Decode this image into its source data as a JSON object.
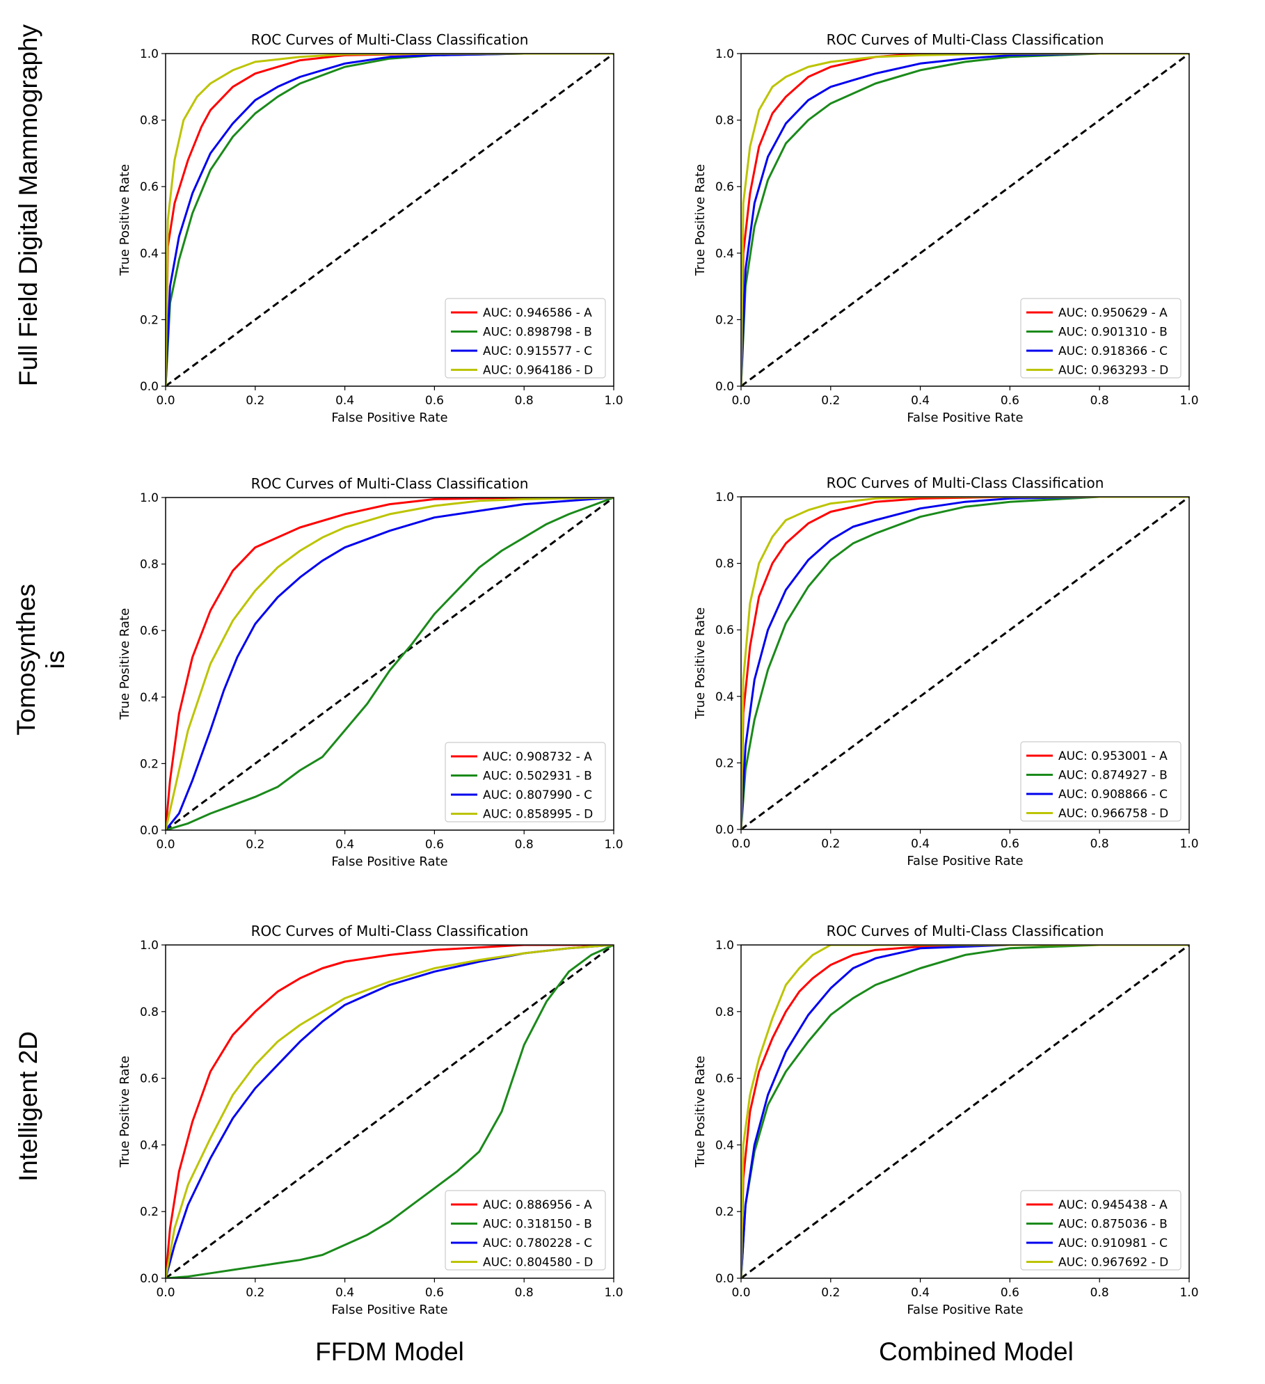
{
  "row_labels": [
    "Full Field Digital Mammography",
    "Tomosynthes\nis",
    "Intelligent 2D"
  ],
  "col_labels": [
    "FFDM Model",
    "Combined Model"
  ],
  "colors": {
    "A": "#ff0000",
    "B": "#1a8a1a",
    "C": "#0000ee",
    "D": "#bcc400",
    "diagonal": "#000000"
  },
  "chart_data": [
    {
      "type": "line",
      "title": "ROC Curves of Multi-Class Classification",
      "xlabel": "False Positive Rate",
      "ylabel": "True Positive Rate",
      "xlim": [
        0,
        1
      ],
      "ylim": [
        0,
        1
      ],
      "xticks": [
        "0.0",
        "0.2",
        "0.4",
        "0.6",
        "0.8",
        "1.0"
      ],
      "yticks": [
        "0.0",
        "0.2",
        "0.4",
        "0.6",
        "0.8",
        "1.0"
      ],
      "legend": "lower-right",
      "series": [
        {
          "name": "AUC: 0.946586 - A",
          "color": "#ff0000",
          "x": [
            0,
            0.005,
            0.02,
            0.05,
            0.08,
            0.1,
            0.15,
            0.2,
            0.3,
            0.4,
            0.6,
            0.8,
            1.0
          ],
          "y": [
            0,
            0.42,
            0.55,
            0.68,
            0.78,
            0.83,
            0.9,
            0.94,
            0.98,
            0.995,
            1.0,
            1.0,
            1.0
          ]
        },
        {
          "name": "AUC: 0.898798 - B",
          "color": "#1a8a1a",
          "x": [
            0,
            0.01,
            0.03,
            0.06,
            0.1,
            0.15,
            0.2,
            0.25,
            0.3,
            0.4,
            0.5,
            0.6,
            0.8,
            1.0
          ],
          "y": [
            0,
            0.25,
            0.38,
            0.52,
            0.65,
            0.75,
            0.82,
            0.87,
            0.91,
            0.96,
            0.985,
            0.995,
            1.0,
            1.0
          ]
        },
        {
          "name": "AUC: 0.915577 - C",
          "color": "#0000ee",
          "x": [
            0,
            0.01,
            0.03,
            0.06,
            0.1,
            0.15,
            0.2,
            0.25,
            0.3,
            0.4,
            0.5,
            0.6,
            0.8,
            1.0
          ],
          "y": [
            0,
            0.3,
            0.45,
            0.58,
            0.7,
            0.79,
            0.86,
            0.9,
            0.93,
            0.97,
            0.99,
            0.995,
            1.0,
            1.0
          ]
        },
        {
          "name": "AUC: 0.964186 - D",
          "color": "#bcc400",
          "x": [
            0,
            0.005,
            0.02,
            0.04,
            0.07,
            0.1,
            0.15,
            0.2,
            0.3,
            0.4,
            0.6,
            1.0
          ],
          "y": [
            0,
            0.5,
            0.68,
            0.8,
            0.87,
            0.91,
            0.95,
            0.975,
            0.99,
            0.998,
            1.0,
            1.0
          ]
        }
      ]
    },
    {
      "type": "line",
      "title": "ROC Curves of Multi-Class Classification",
      "xlabel": "False Positive Rate",
      "ylabel": "True Positive Rate",
      "xlim": [
        0,
        1
      ],
      "ylim": [
        0,
        1
      ],
      "xticks": [
        "0.0",
        "0.2",
        "0.4",
        "0.6",
        "0.8",
        "1.0"
      ],
      "yticks": [
        "0.0",
        "0.2",
        "0.4",
        "0.6",
        "0.8",
        "1.0"
      ],
      "legend": "lower-right",
      "series": [
        {
          "name": "AUC: 0.950629 - A",
          "color": "#ff0000",
          "x": [
            0,
            0.005,
            0.02,
            0.04,
            0.07,
            0.1,
            0.15,
            0.2,
            0.3,
            0.4,
            0.6,
            1.0
          ],
          "y": [
            0,
            0.4,
            0.58,
            0.72,
            0.82,
            0.87,
            0.93,
            0.96,
            0.99,
            1.0,
            1.0,
            1.0
          ]
        },
        {
          "name": "AUC: 0.901310 - B",
          "color": "#1a8a1a",
          "x": [
            0,
            0.01,
            0.03,
            0.06,
            0.1,
            0.15,
            0.2,
            0.25,
            0.3,
            0.4,
            0.5,
            0.6,
            0.8,
            1.0
          ],
          "y": [
            0,
            0.3,
            0.48,
            0.62,
            0.73,
            0.8,
            0.85,
            0.88,
            0.91,
            0.95,
            0.975,
            0.99,
            1.0,
            1.0
          ]
        },
        {
          "name": "AUC: 0.918366 - C",
          "color": "#0000ee",
          "x": [
            0,
            0.01,
            0.03,
            0.06,
            0.1,
            0.15,
            0.2,
            0.25,
            0.3,
            0.4,
            0.5,
            0.6,
            0.8,
            1.0
          ],
          "y": [
            0,
            0.35,
            0.55,
            0.69,
            0.79,
            0.86,
            0.9,
            0.92,
            0.94,
            0.97,
            0.985,
            0.995,
            1.0,
            1.0
          ]
        },
        {
          "name": "AUC: 0.963293 - D",
          "color": "#bcc400",
          "x": [
            0,
            0.005,
            0.02,
            0.04,
            0.07,
            0.1,
            0.15,
            0.2,
            0.3,
            0.4,
            0.6,
            1.0
          ],
          "y": [
            0,
            0.55,
            0.72,
            0.83,
            0.9,
            0.93,
            0.96,
            0.975,
            0.99,
            0.995,
            1.0,
            1.0
          ]
        }
      ]
    },
    {
      "type": "line",
      "title": "ROC Curves of Multi-Class Classification",
      "xlabel": "False Positive Rate",
      "ylabel": "True Positive Rate",
      "xlim": [
        0,
        1
      ],
      "ylim": [
        0,
        1
      ],
      "xticks": [
        "0.0",
        "0.2",
        "0.4",
        "0.6",
        "0.8",
        "1.0"
      ],
      "yticks": [
        "0.0",
        "0.2",
        "0.4",
        "0.6",
        "0.8",
        "1.0"
      ],
      "legend": "lower-right",
      "series": [
        {
          "name": "AUC: 0.908732 - A",
          "color": "#ff0000",
          "x": [
            0,
            0.01,
            0.03,
            0.06,
            0.1,
            0.15,
            0.2,
            0.25,
            0.3,
            0.4,
            0.5,
            0.6,
            0.8,
            1.0
          ],
          "y": [
            0,
            0.15,
            0.35,
            0.52,
            0.66,
            0.78,
            0.85,
            0.88,
            0.91,
            0.95,
            0.98,
            0.995,
            1.0,
            1.0
          ]
        },
        {
          "name": "AUC: 0.502931 - B",
          "color": "#1a8a1a",
          "x": [
            0,
            0.05,
            0.1,
            0.15,
            0.2,
            0.25,
            0.3,
            0.35,
            0.4,
            0.45,
            0.5,
            0.55,
            0.6,
            0.65,
            0.7,
            0.75,
            0.8,
            0.85,
            0.9,
            0.95,
            1.0
          ],
          "y": [
            0,
            0.02,
            0.05,
            0.075,
            0.1,
            0.13,
            0.18,
            0.22,
            0.3,
            0.38,
            0.48,
            0.56,
            0.65,
            0.72,
            0.79,
            0.84,
            0.88,
            0.92,
            0.95,
            0.975,
            1.0
          ]
        },
        {
          "name": "AUC: 0.807990 - C",
          "color": "#0000ee",
          "x": [
            0,
            0.03,
            0.06,
            0.1,
            0.13,
            0.16,
            0.2,
            0.25,
            0.3,
            0.35,
            0.4,
            0.5,
            0.6,
            0.7,
            0.8,
            0.9,
            1.0
          ],
          "y": [
            0,
            0.05,
            0.15,
            0.3,
            0.42,
            0.52,
            0.62,
            0.7,
            0.76,
            0.81,
            0.85,
            0.9,
            0.94,
            0.96,
            0.98,
            0.99,
            1.0
          ]
        },
        {
          "name": "AUC: 0.858995 - D",
          "color": "#bcc400",
          "x": [
            0,
            0.02,
            0.05,
            0.1,
            0.15,
            0.2,
            0.25,
            0.3,
            0.35,
            0.4,
            0.5,
            0.6,
            0.7,
            0.8,
            1.0
          ],
          "y": [
            0,
            0.12,
            0.3,
            0.5,
            0.63,
            0.72,
            0.79,
            0.84,
            0.88,
            0.91,
            0.95,
            0.975,
            0.99,
            0.995,
            1.0
          ]
        }
      ]
    },
    {
      "type": "line",
      "title": "ROC Curves of Multi-Class Classification",
      "xlabel": "False Positive Rate",
      "ylabel": "True Positive Rate",
      "xlim": [
        0,
        1
      ],
      "ylim": [
        0,
        1
      ],
      "xticks": [
        "0.0",
        "0.2",
        "0.4",
        "0.6",
        "0.8",
        "1.0"
      ],
      "yticks": [
        "0.0",
        "0.2",
        "0.4",
        "0.6",
        "0.8",
        "1.0"
      ],
      "legend": "lower-right",
      "series": [
        {
          "name": "AUC: 0.953001 - A",
          "color": "#ff0000",
          "x": [
            0,
            0.005,
            0.02,
            0.04,
            0.07,
            0.1,
            0.15,
            0.2,
            0.3,
            0.4,
            0.6,
            1.0
          ],
          "y": [
            0,
            0.35,
            0.55,
            0.7,
            0.8,
            0.86,
            0.92,
            0.955,
            0.985,
            0.995,
            1.0,
            1.0
          ]
        },
        {
          "name": "AUC: 0.874927 - B",
          "color": "#1a8a1a",
          "x": [
            0,
            0.01,
            0.03,
            0.06,
            0.1,
            0.15,
            0.2,
            0.25,
            0.3,
            0.4,
            0.5,
            0.6,
            0.8,
            1.0
          ],
          "y": [
            0,
            0.18,
            0.33,
            0.48,
            0.62,
            0.73,
            0.81,
            0.86,
            0.89,
            0.94,
            0.97,
            0.985,
            1.0,
            1.0
          ]
        },
        {
          "name": "AUC: 0.908866 - C",
          "color": "#0000ee",
          "x": [
            0,
            0.01,
            0.03,
            0.06,
            0.1,
            0.15,
            0.2,
            0.25,
            0.3,
            0.4,
            0.5,
            0.6,
            0.8,
            1.0
          ],
          "y": [
            0,
            0.25,
            0.45,
            0.6,
            0.72,
            0.81,
            0.87,
            0.91,
            0.93,
            0.965,
            0.985,
            0.995,
            1.0,
            1.0
          ]
        },
        {
          "name": "AUC: 0.966758 - D",
          "color": "#bcc400",
          "x": [
            0,
            0.005,
            0.02,
            0.04,
            0.07,
            0.1,
            0.15,
            0.2,
            0.3,
            0.4,
            0.6,
            1.0
          ],
          "y": [
            0,
            0.45,
            0.68,
            0.8,
            0.88,
            0.93,
            0.96,
            0.98,
            0.995,
            1.0,
            1.0,
            1.0
          ]
        }
      ]
    },
    {
      "type": "line",
      "title": "ROC Curves of Multi-Class Classification",
      "xlabel": "False Positive Rate",
      "ylabel": "True Positive Rate",
      "xlim": [
        0,
        1
      ],
      "ylim": [
        0,
        1
      ],
      "xticks": [
        "0.0",
        "0.2",
        "0.4",
        "0.6",
        "0.8",
        "1.0"
      ],
      "yticks": [
        "0.0",
        "0.2",
        "0.4",
        "0.6",
        "0.8",
        "1.0"
      ],
      "legend": "lower-right",
      "series": [
        {
          "name": "AUC: 0.886956 - A",
          "color": "#ff0000",
          "x": [
            0,
            0.01,
            0.03,
            0.06,
            0.1,
            0.15,
            0.2,
            0.25,
            0.3,
            0.35,
            0.4,
            0.5,
            0.6,
            0.8,
            1.0
          ],
          "y": [
            0,
            0.15,
            0.32,
            0.47,
            0.62,
            0.73,
            0.8,
            0.86,
            0.9,
            0.93,
            0.95,
            0.97,
            0.985,
            1.0,
            1.0
          ]
        },
        {
          "name": "AUC: 0.318150 - B",
          "color": "#1a8a1a",
          "x": [
            0,
            0.05,
            0.1,
            0.15,
            0.2,
            0.25,
            0.3,
            0.35,
            0.4,
            0.45,
            0.5,
            0.55,
            0.6,
            0.65,
            0.7,
            0.75,
            0.8,
            0.85,
            0.9,
            0.95,
            1.0
          ],
          "y": [
            0,
            0.005,
            0.015,
            0.025,
            0.035,
            0.045,
            0.055,
            0.07,
            0.1,
            0.13,
            0.17,
            0.22,
            0.27,
            0.32,
            0.38,
            0.5,
            0.7,
            0.83,
            0.92,
            0.97,
            1.0
          ]
        },
        {
          "name": "AUC: 0.780228 - C",
          "color": "#0000ee",
          "x": [
            0,
            0.02,
            0.05,
            0.1,
            0.15,
            0.2,
            0.25,
            0.3,
            0.35,
            0.4,
            0.5,
            0.6,
            0.7,
            0.8,
            0.9,
            1.0
          ],
          "y": [
            0,
            0.1,
            0.22,
            0.36,
            0.48,
            0.57,
            0.64,
            0.71,
            0.77,
            0.82,
            0.88,
            0.92,
            0.95,
            0.975,
            0.99,
            1.0
          ]
        },
        {
          "name": "AUC: 0.804580 - D",
          "color": "#bcc400",
          "x": [
            0,
            0.02,
            0.05,
            0.1,
            0.15,
            0.2,
            0.25,
            0.3,
            0.35,
            0.4,
            0.5,
            0.6,
            0.7,
            0.8,
            0.9,
            1.0
          ],
          "y": [
            0,
            0.15,
            0.28,
            0.42,
            0.55,
            0.64,
            0.71,
            0.76,
            0.8,
            0.84,
            0.89,
            0.93,
            0.955,
            0.975,
            0.99,
            1.0
          ]
        }
      ]
    },
    {
      "type": "line",
      "title": "ROC Curves of Multi-Class Classification",
      "xlabel": "False Positive Rate",
      "ylabel": "True Positive Rate",
      "xlim": [
        0,
        1
      ],
      "ylim": [
        0,
        1
      ],
      "xticks": [
        "0.0",
        "0.2",
        "0.4",
        "0.6",
        "0.8",
        "1.0"
      ],
      "yticks": [
        "0.0",
        "0.2",
        "0.4",
        "0.6",
        "0.8",
        "1.0"
      ],
      "legend": "lower-right",
      "series": [
        {
          "name": "AUC: 0.945438 - A",
          "color": "#ff0000",
          "x": [
            0,
            0.005,
            0.02,
            0.04,
            0.07,
            0.1,
            0.13,
            0.16,
            0.2,
            0.25,
            0.3,
            0.4,
            0.6,
            1.0
          ],
          "y": [
            0,
            0.3,
            0.5,
            0.62,
            0.72,
            0.8,
            0.86,
            0.9,
            0.94,
            0.97,
            0.985,
            0.995,
            1.0,
            1.0
          ]
        },
        {
          "name": "AUC: 0.875036 - B",
          "color": "#1a8a1a",
          "x": [
            0,
            0.01,
            0.03,
            0.06,
            0.1,
            0.15,
            0.2,
            0.25,
            0.3,
            0.4,
            0.5,
            0.6,
            0.8,
            1.0
          ],
          "y": [
            0,
            0.22,
            0.38,
            0.52,
            0.62,
            0.71,
            0.79,
            0.84,
            0.88,
            0.93,
            0.97,
            0.99,
            1.0,
            1.0
          ]
        },
        {
          "name": "AUC: 0.910981 - C",
          "color": "#0000ee",
          "x": [
            0,
            0.01,
            0.03,
            0.06,
            0.1,
            0.15,
            0.2,
            0.25,
            0.3,
            0.4,
            0.5,
            0.6,
            0.8,
            1.0
          ],
          "y": [
            0,
            0.22,
            0.4,
            0.55,
            0.68,
            0.79,
            0.87,
            0.93,
            0.96,
            0.99,
            0.995,
            1.0,
            1.0,
            1.0
          ]
        },
        {
          "name": "AUC: 0.967692 - D",
          "color": "#bcc400",
          "x": [
            0,
            0.005,
            0.02,
            0.04,
            0.07,
            0.1,
            0.13,
            0.16,
            0.2,
            0.3,
            0.5,
            1.0
          ],
          "y": [
            0,
            0.4,
            0.55,
            0.66,
            0.78,
            0.88,
            0.93,
            0.97,
            1.0,
            1.0,
            1.0,
            1.0
          ]
        }
      ]
    }
  ]
}
